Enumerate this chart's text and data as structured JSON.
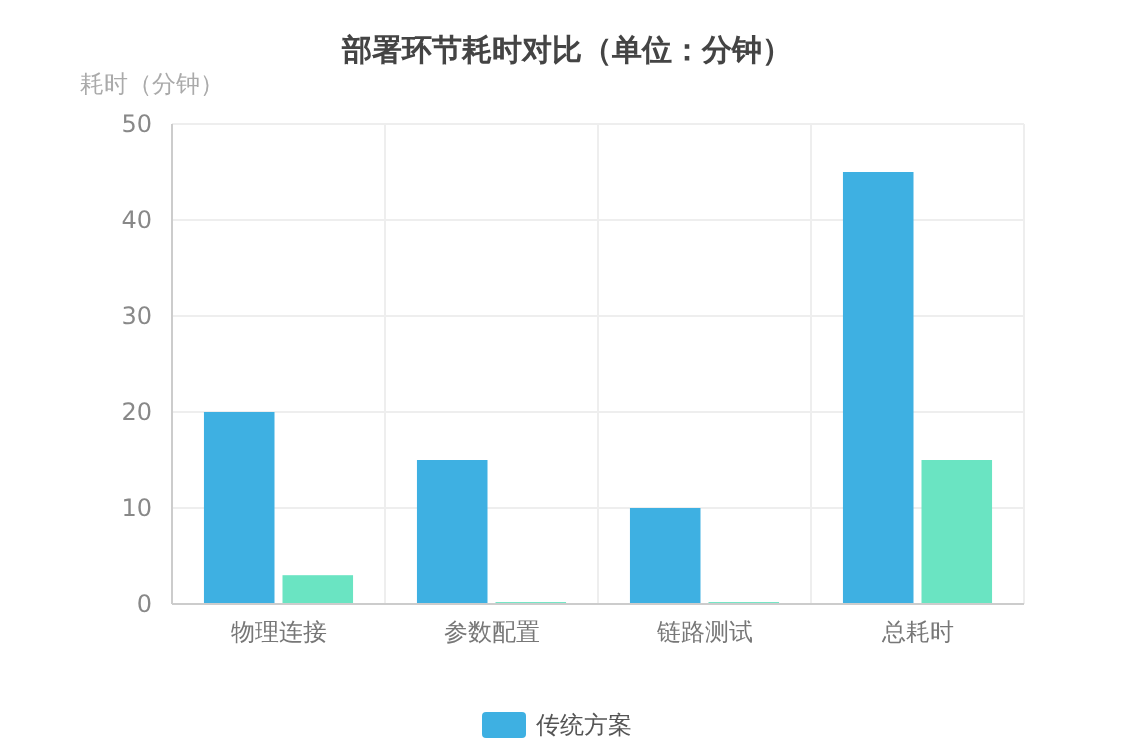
{
  "chart_data": {
    "type": "bar",
    "title": "部署环节耗时对比（单位：分钟）",
    "ylabel": "耗时（分钟）",
    "categories": [
      "物理连接",
      "参数配置",
      "链路测试",
      "总耗时"
    ],
    "series": [
      {
        "name": "传统方案",
        "color": "#3eb0e2",
        "values": [
          20,
          15,
          10,
          45
        ]
      },
      {
        "color": "#6ae4c2",
        "values": [
          3,
          0.2,
          0.2,
          15
        ]
      }
    ],
    "ylim": [
      0,
      50
    ],
    "yticks": [
      0,
      10,
      20,
      30,
      40,
      50
    ],
    "grid": true,
    "legend": "bottom"
  }
}
